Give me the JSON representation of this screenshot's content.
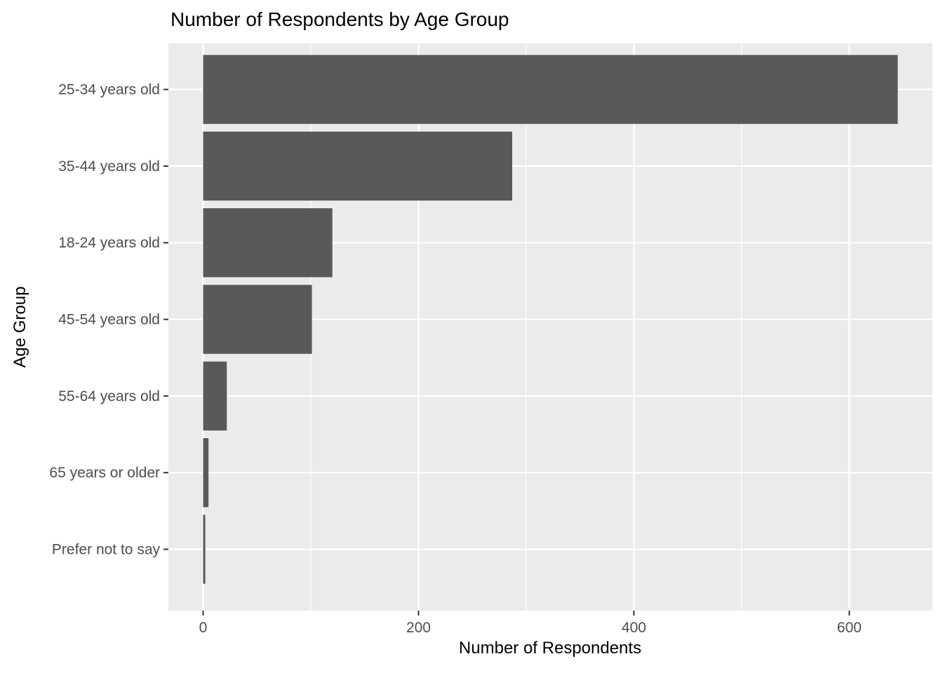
{
  "chart_data": {
    "type": "bar",
    "orientation": "horizontal",
    "title": "Number of Respondents by Age Group",
    "xlabel": "Number of Respondents",
    "ylabel": "Age Group",
    "categories": [
      "25-34 years old",
      "35-44 years old",
      "18-24 years old",
      "45-54 years old",
      "55-64 years old",
      "65 years or older",
      "Prefer not to say"
    ],
    "values": [
      645,
      287,
      120,
      101,
      22,
      5,
      2
    ],
    "x_ticks": [
      0,
      200,
      400,
      600
    ],
    "x_tick_labels": [
      "0",
      "200",
      "400",
      "600"
    ],
    "x_minor_ticks": [
      100,
      300,
      500
    ],
    "xlim": [
      0,
      645
    ],
    "xlim_expand": 0.05,
    "band_expand": 0.6,
    "bar_width_fraction": 0.9,
    "grid": true,
    "legend_position": "none",
    "colors": {
      "bar_fill": "#595959",
      "panel_background": "#EBEBEB",
      "grid_major": "#FFFFFF",
      "grid_minor": "#FFFFFF",
      "tick_mark": "#333333",
      "tick_label": "#4D4D4D",
      "axis_title": "#000000",
      "title": "#000000",
      "page_background": "#FFFFFF"
    }
  }
}
